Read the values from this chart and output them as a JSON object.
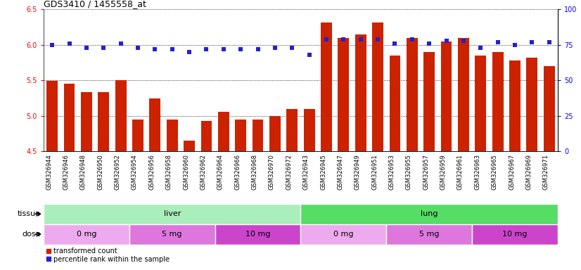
{
  "title": "GDS3410 / 1455558_at",
  "samples": [
    "GSM326944",
    "GSM326946",
    "GSM326948",
    "GSM326950",
    "GSM326952",
    "GSM326954",
    "GSM326956",
    "GSM326958",
    "GSM326960",
    "GSM326962",
    "GSM326964",
    "GSM326966",
    "GSM326968",
    "GSM326970",
    "GSM326972",
    "GSM326943",
    "GSM326945",
    "GSM326947",
    "GSM326949",
    "GSM326951",
    "GSM326953",
    "GSM326955",
    "GSM326957",
    "GSM326959",
    "GSM326961",
    "GSM326963",
    "GSM326965",
    "GSM326967",
    "GSM326969",
    "GSM326971"
  ],
  "transformed_count": [
    5.49,
    5.45,
    5.33,
    5.33,
    5.5,
    4.95,
    5.24,
    4.95,
    4.65,
    4.93,
    5.06,
    4.95,
    4.95,
    5.0,
    5.1,
    5.1,
    6.32,
    6.1,
    6.15,
    6.32,
    5.85,
    6.1,
    5.9,
    6.05,
    6.1,
    5.85,
    5.9,
    5.78,
    5.82,
    5.7
  ],
  "percentile_rank": [
    75,
    76,
    73,
    73,
    76,
    73,
    72,
    72,
    70,
    72,
    72,
    72,
    72,
    73,
    73,
    68,
    79,
    79,
    79,
    79,
    76,
    79,
    76,
    78,
    78,
    73,
    77,
    75,
    77,
    77
  ],
  "ylim_left": [
    4.5,
    6.5
  ],
  "ylim_right": [
    0,
    100
  ],
  "yticks_left": [
    4.5,
    5.0,
    5.5,
    6.0,
    6.5
  ],
  "yticks_right": [
    0,
    25,
    50,
    75,
    100
  ],
  "bar_color": "#cc2200",
  "dot_color": "#2222cc",
  "tissue_groups": [
    {
      "label": "liver",
      "start": 0,
      "end": 15,
      "color": "#aaeebb"
    },
    {
      "label": "lung",
      "start": 15,
      "end": 30,
      "color": "#55dd66"
    }
  ],
  "dose_groups": [
    {
      "label": "0 mg",
      "start": 0,
      "end": 5,
      "color": "#eeaaee"
    },
    {
      "label": "5 mg",
      "start": 5,
      "end": 10,
      "color": "#dd77dd"
    },
    {
      "label": "10 mg",
      "start": 10,
      "end": 15,
      "color": "#cc44cc"
    },
    {
      "label": "0 mg",
      "start": 15,
      "end": 20,
      "color": "#eeaaee"
    },
    {
      "label": "5 mg",
      "start": 20,
      "end": 25,
      "color": "#dd77dd"
    },
    {
      "label": "10 mg",
      "start": 25,
      "end": 30,
      "color": "#cc44cc"
    }
  ],
  "legend_items": [
    {
      "label": "transformed count",
      "color": "#cc2200",
      "marker": "s"
    },
    {
      "label": "percentile rank within the sample",
      "color": "#2222cc",
      "marker": "s"
    }
  ],
  "bg_color": "#ffffff",
  "xtick_bg": "#d8d8d8",
  "grid_color": "#000000",
  "title_fontsize": 9,
  "tick_fontsize": 6,
  "label_fontsize": 8
}
